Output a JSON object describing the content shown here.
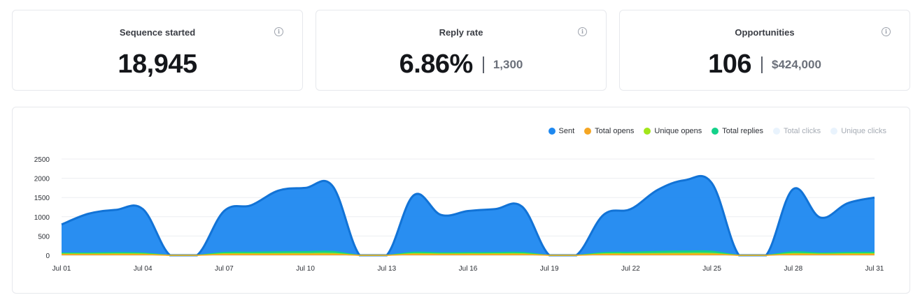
{
  "stats": {
    "sequence": {
      "title": "Sequence started",
      "value": "18,945"
    },
    "reply": {
      "title": "Reply rate",
      "value": "6.86%",
      "sub": "1,300"
    },
    "opportunities": {
      "title": "Opportunities",
      "value": "106",
      "sub": "$424,000"
    }
  },
  "info_icon": "info-icon",
  "legend": [
    {
      "label": "Sent",
      "color": "#1e88f0",
      "muted": false
    },
    {
      "label": "Total opens",
      "color": "#f5a623",
      "muted": false
    },
    {
      "label": "Unique opens",
      "color": "#a2e61a",
      "muted": false
    },
    {
      "label": "Total replies",
      "color": "#14d18a",
      "muted": false
    },
    {
      "label": "Total clicks",
      "color": "#e9f3fd",
      "muted": true
    },
    {
      "label": "Unique clicks",
      "color": "#e9f3fd",
      "muted": true
    }
  ],
  "chart_data": {
    "type": "area",
    "x": [
      "Jul 01",
      "Jul 02",
      "Jul 03",
      "Jul 04",
      "Jul 05",
      "Jul 06",
      "Jul 07",
      "Jul 08",
      "Jul 09",
      "Jul 10",
      "Jul 11",
      "Jul 12",
      "Jul 13",
      "Jul 14",
      "Jul 15",
      "Jul 16",
      "Jul 17",
      "Jul 18",
      "Jul 19",
      "Jul 20",
      "Jul 21",
      "Jul 22",
      "Jul 23",
      "Jul 24",
      "Jul 25",
      "Jul 26",
      "Jul 27",
      "Jul 28",
      "Jul 29",
      "Jul 30",
      "Jul 31"
    ],
    "x_tick_labels": [
      "Jul 01",
      "Jul 04",
      "Jul 07",
      "Jul 10",
      "Jul 13",
      "Jul 16",
      "Jul 19",
      "Jul 22",
      "Jul 25",
      "Jul 28",
      "Jul 31"
    ],
    "y_ticks": [
      0,
      500,
      1000,
      1500,
      2000,
      2500
    ],
    "ylim": [
      0,
      2500
    ],
    "grid": true,
    "legend_position": "top-right",
    "series": [
      {
        "name": "Sent",
        "color": "#1e88f0",
        "values": [
          800,
          1080,
          1180,
          1200,
          0,
          0,
          1150,
          1300,
          1680,
          1750,
          1800,
          0,
          0,
          1560,
          1050,
          1150,
          1200,
          1260,
          0,
          0,
          1050,
          1200,
          1700,
          1950,
          1870,
          0,
          0,
          1720,
          980,
          1350,
          1500
        ]
      },
      {
        "name": "Total replies",
        "color": "#14d18a",
        "values": [
          60,
          60,
          70,
          60,
          0,
          0,
          75,
          80,
          90,
          95,
          100,
          0,
          0,
          80,
          65,
          70,
          72,
          75,
          0,
          0,
          70,
          80,
          100,
          110,
          105,
          0,
          0,
          90,
          60,
          75,
          80
        ]
      },
      {
        "name": "Unique opens",
        "color": "#a2e61a",
        "values": [
          35,
          35,
          38,
          35,
          0,
          0,
          40,
          42,
          45,
          48,
          50,
          0,
          0,
          42,
          36,
          38,
          40,
          40,
          0,
          0,
          38,
          42,
          48,
          52,
          50,
          0,
          0,
          45,
          34,
          40,
          42
        ]
      },
      {
        "name": "Total opens",
        "color": "#f5a623",
        "values": [
          20,
          20,
          22,
          20,
          0,
          0,
          22,
          24,
          26,
          28,
          28,
          0,
          0,
          24,
          20,
          22,
          22,
          23,
          0,
          0,
          22,
          24,
          28,
          30,
          29,
          0,
          0,
          26,
          20,
          23,
          24
        ]
      }
    ]
  }
}
